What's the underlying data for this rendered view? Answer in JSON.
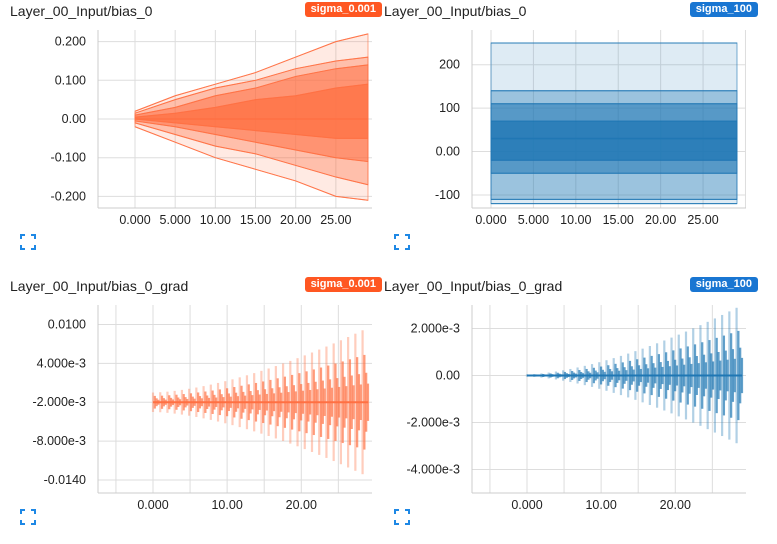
{
  "colors": {
    "orange": "#ff7043",
    "orange_badge": "#ff5722",
    "blue": "#1f77b4",
    "blue_badge": "#1976d2",
    "grid": "#dddddd",
    "expand": "#1e88e5"
  },
  "icons": {
    "expand": "fullscreen-icon"
  },
  "chart_data": [
    {
      "type": "area",
      "title": "Layer_00_Input/bias_0",
      "run": "sigma_0.001",
      "x_ticks": [
        "0.000",
        "5.000",
        "10.00",
        "15.00",
        "20.00",
        "25.00"
      ],
      "y_ticks": [
        "0.200",
        "0.100",
        "0.00",
        "-0.100",
        "-0.200"
      ],
      "xlim": [
        0,
        29
      ],
      "ylim": [
        -0.23,
        0.23
      ],
      "bands": {
        "x": [
          0,
          5,
          10,
          15,
          20,
          25,
          29
        ],
        "p0": [
          -0.02,
          -0.06,
          -0.1,
          -0.13,
          -0.16,
          -0.2,
          -0.21
        ],
        "p7": [
          -0.01,
          -0.04,
          -0.07,
          -0.09,
          -0.12,
          -0.15,
          -0.17
        ],
        "p16": [
          -0.005,
          -0.02,
          -0.04,
          -0.06,
          -0.08,
          -0.1,
          -0.11
        ],
        "p31": [
          0.0,
          -0.01,
          -0.02,
          -0.03,
          -0.04,
          -0.05,
          -0.05
        ],
        "p50": [
          0.0,
          0.0,
          0.0,
          0.0,
          0.0,
          0.0,
          0.0
        ],
        "p69": [
          0.005,
          0.015,
          0.03,
          0.05,
          0.06,
          0.08,
          0.09
        ],
        "p84": [
          0.01,
          0.03,
          0.06,
          0.08,
          0.11,
          0.13,
          0.14
        ],
        "p93": [
          0.015,
          0.05,
          0.08,
          0.1,
          0.13,
          0.15,
          0.16
        ],
        "p100": [
          0.02,
          0.06,
          0.09,
          0.12,
          0.16,
          0.2,
          0.22
        ]
      }
    },
    {
      "type": "area",
      "title": "Layer_00_Input/bias_0",
      "run": "sigma_100",
      "x_ticks": [
        "0.000",
        "5.000",
        "10.00",
        "15.00",
        "20.00",
        "25.00"
      ],
      "y_ticks": [
        "200",
        "100",
        "0.00",
        "-100"
      ],
      "xlim": [
        0,
        29
      ],
      "ylim": [
        -130,
        280
      ],
      "bands": {
        "x": [
          0,
          29
        ],
        "p0": [
          -120,
          -120
        ],
        "p7": [
          -110,
          -110
        ],
        "p16": [
          -50,
          -50
        ],
        "p31": [
          -20,
          -20
        ],
        "p50": [
          30,
          30
        ],
        "p69": [
          70,
          70
        ],
        "p84": [
          110,
          110
        ],
        "p93": [
          140,
          140
        ],
        "p100": [
          250,
          250
        ]
      }
    },
    {
      "type": "area",
      "title": "Layer_00_Input/bias_0_grad",
      "run": "sigma_0.001",
      "x_ticks": [
        "0.000",
        "10.00",
        "20.00"
      ],
      "y_ticks": [
        "0.0100",
        "4.000e-3",
        "-2.000e-3",
        "-8.000e-3",
        "-0.0140"
      ],
      "xlim": [
        0,
        29
      ],
      "ylim": [
        -0.016,
        0.013
      ],
      "grad": {
        "amp_lo": 0.0015,
        "amp_hi": 0.0115,
        "center": -0.002
      }
    },
    {
      "type": "area",
      "title": "Layer_00_Input/bias_0_grad",
      "run": "sigma_100",
      "x_ticks": [
        "0.000",
        "10.00",
        "20.00"
      ],
      "y_ticks": [
        "2.000e-3",
        "0.00",
        "-2.000e-3",
        "-4.000e-3"
      ],
      "xlim": [
        0,
        29
      ],
      "ylim": [
        -0.005,
        0.003
      ],
      "grad": {
        "amp_lo": 5e-05,
        "amp_hi": 0.003,
        "center": 0.0
      }
    }
  ]
}
